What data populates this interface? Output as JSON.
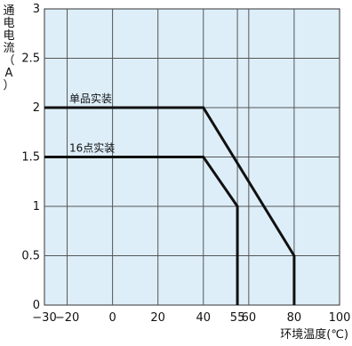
{
  "chart_data": {
    "type": "line",
    "title": "",
    "xlabel": "环境温度(℃)",
    "ylabel": "通电电流(A)",
    "ylabel_chars": [
      "通",
      "电",
      "电",
      "流",
      "（",
      "A",
      "）"
    ],
    "xlim": [
      -30,
      100
    ],
    "ylim": [
      0,
      3
    ],
    "x_ticks": [
      {
        "value": -30,
        "label": "−30"
      },
      {
        "value": -20,
        "label": "−20"
      },
      {
        "value": 0,
        "label": "0"
      },
      {
        "value": 20,
        "label": "20"
      },
      {
        "value": 40,
        "label": "40"
      },
      {
        "value": 55,
        "label": "55"
      },
      {
        "value": 60,
        "label": "60"
      },
      {
        "value": 80,
        "label": "80"
      },
      {
        "value": 100,
        "label": "100"
      }
    ],
    "y_ticks": [
      {
        "value": 0,
        "label": "0"
      },
      {
        "value": 0.5,
        "label": "0.5"
      },
      {
        "value": 1,
        "label": "1"
      },
      {
        "value": 1.5,
        "label": "1.5"
      },
      {
        "value": 2,
        "label": "2"
      },
      {
        "value": 2.5,
        "label": "2.5"
      },
      {
        "value": 3,
        "label": "3"
      }
    ],
    "grid": true,
    "background_color": "#ddeef9",
    "grid_color": "#555555",
    "line_color": "#111111",
    "series": [
      {
        "name": "单品实装",
        "points": [
          [
            -30,
            2
          ],
          [
            40,
            2
          ],
          [
            80,
            0.5
          ],
          [
            80,
            0
          ]
        ]
      },
      {
        "name": "16点实装",
        "points": [
          [
            -30,
            1.5
          ],
          [
            40,
            1.5
          ],
          [
            55,
            1
          ],
          [
            55,
            0
          ]
        ]
      }
    ]
  }
}
